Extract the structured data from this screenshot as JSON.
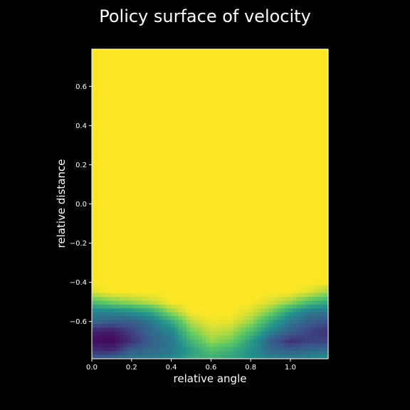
{
  "chart_data": {
    "type": "heatmap",
    "title": "Policy surface of velocity",
    "xlabel": "relative angle",
    "ylabel": "relative distance",
    "xlim": [
      0.0,
      1.19
    ],
    "ylim": [
      -0.79,
      0.79
    ],
    "xticks": [
      "0.0",
      "0.2",
      "0.4",
      "0.6",
      "0.8",
      "1.0"
    ],
    "yticks": [
      "0.6",
      "0.4",
      "0.2",
      "0.0",
      "−0.2",
      "−0.4",
      "−0.6"
    ],
    "colormap": "viridis",
    "value_range": [
      0,
      1
    ],
    "grid": false,
    "legend": "none",
    "x": [
      0.0,
      0.1,
      0.2,
      0.3,
      0.4,
      0.5,
      0.6,
      0.7,
      0.8,
      0.9,
      1.0,
      1.1,
      1.19
    ],
    "y": [
      -0.79,
      -0.75,
      -0.7,
      -0.65,
      -0.6,
      -0.55,
      -0.5,
      -0.45,
      -0.4,
      0.79
    ],
    "values": [
      [
        0.3,
        0.35,
        0.4,
        0.4,
        0.45,
        0.6,
        0.62,
        0.58,
        0.5,
        0.45,
        0.42,
        0.45,
        0.5
      ],
      [
        0.15,
        0.12,
        0.3,
        0.35,
        0.4,
        0.55,
        0.7,
        0.62,
        0.5,
        0.35,
        0.3,
        0.35,
        0.35
      ],
      [
        0.05,
        0.02,
        0.15,
        0.3,
        0.4,
        0.65,
        0.85,
        0.78,
        0.55,
        0.3,
        0.15,
        0.2,
        0.2
      ],
      [
        0.1,
        0.08,
        0.2,
        0.35,
        0.45,
        0.78,
        0.92,
        0.88,
        0.7,
        0.45,
        0.3,
        0.2,
        0.15
      ],
      [
        0.35,
        0.3,
        0.3,
        0.4,
        0.6,
        0.9,
        0.98,
        0.97,
        0.85,
        0.6,
        0.4,
        0.3,
        0.25
      ],
      [
        0.45,
        0.45,
        0.5,
        0.6,
        0.85,
        1.0,
        1.0,
        1.0,
        0.95,
        0.8,
        0.55,
        0.4,
        0.4
      ],
      [
        0.7,
        0.8,
        0.85,
        0.92,
        1.0,
        1.0,
        1.0,
        1.0,
        1.0,
        0.95,
        0.85,
        0.7,
        0.6
      ],
      [
        0.95,
        1.0,
        1.0,
        1.0,
        1.0,
        1.0,
        1.0,
        1.0,
        1.0,
        1.0,
        1.0,
        0.95,
        0.85
      ],
      [
        1.0,
        1.0,
        1.0,
        1.0,
        1.0,
        1.0,
        1.0,
        1.0,
        1.0,
        1.0,
        1.0,
        1.0,
        1.0
      ],
      [
        1.0,
        1.0,
        1.0,
        1.0,
        1.0,
        1.0,
        1.0,
        1.0,
        1.0,
        1.0,
        1.0,
        1.0,
        1.0
      ]
    ]
  },
  "colors": {
    "background": "#000000",
    "text": "#ffffff",
    "axes_spine": "#ffffff"
  }
}
